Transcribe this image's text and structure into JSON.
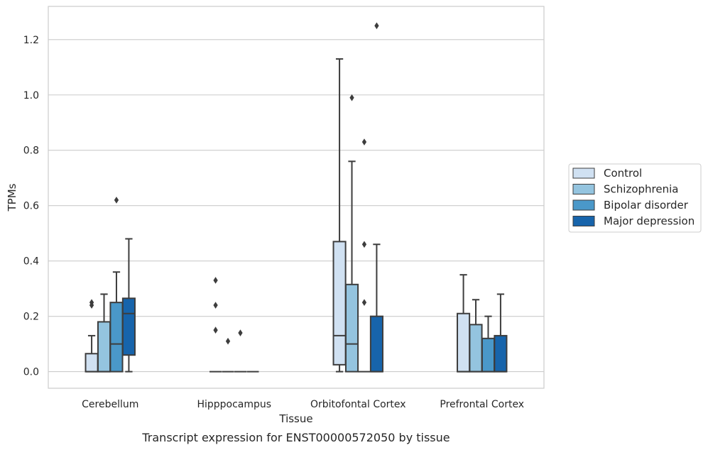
{
  "caption": "Transcript expression for ENST00000572050 by tissue",
  "chart_data": {
    "type": "boxplot",
    "xlabel": "Tissue",
    "ylabel": "TPMs",
    "ylim": [
      -0.06,
      1.32
    ],
    "yticks": [
      0.0,
      0.2,
      0.4,
      0.6,
      0.8,
      1.0,
      1.2
    ],
    "ytick_labels": [
      "0.0",
      "0.2",
      "0.4",
      "0.6",
      "0.8",
      "1.0",
      "1.2"
    ],
    "grid": "horizontal",
    "legend_position": "right",
    "categories": [
      "Cerebellum",
      "Hipppocampus",
      "Orbitofontal Cortex",
      "Prefrontal Cortex"
    ],
    "series": [
      {
        "name": "Control",
        "color": "#d0e1f2",
        "boxes": [
          {
            "whislo": 0.0,
            "q1": 0.0,
            "med": 0.0,
            "q3": 0.065,
            "whishi": 0.13,
            "fliers": [
              0.24,
              0.25
            ]
          },
          {
            "whislo": 0.0,
            "q1": 0.0,
            "med": 0.0,
            "q3": 0.0,
            "whishi": 0.0,
            "fliers": [
              0.15,
              0.24,
              0.33
            ]
          },
          {
            "whislo": 0.0,
            "q1": 0.025,
            "med": 0.13,
            "q3": 0.47,
            "whishi": 1.13,
            "fliers": []
          },
          {
            "whislo": 0.0,
            "q1": 0.0,
            "med": 0.0,
            "q3": 0.21,
            "whishi": 0.35,
            "fliers": []
          }
        ]
      },
      {
        "name": "Schizophrenia",
        "color": "#94c4df",
        "boxes": [
          {
            "whislo": 0.0,
            "q1": 0.0,
            "med": 0.0,
            "q3": 0.18,
            "whishi": 0.28,
            "fliers": []
          },
          {
            "whislo": 0.0,
            "q1": 0.0,
            "med": 0.0,
            "q3": 0.0,
            "whishi": 0.0,
            "fliers": [
              0.11
            ]
          },
          {
            "whislo": 0.0,
            "q1": 0.0,
            "med": 0.1,
            "q3": 0.315,
            "whishi": 0.76,
            "fliers": [
              0.99
            ]
          },
          {
            "whislo": 0.0,
            "q1": 0.0,
            "med": 0.0,
            "q3": 0.17,
            "whishi": 0.26,
            "fliers": []
          }
        ]
      },
      {
        "name": "Bipolar disorder",
        "color": "#4a98c9",
        "boxes": [
          {
            "whislo": 0.0,
            "q1": 0.0,
            "med": 0.1,
            "q3": 0.25,
            "whishi": 0.36,
            "fliers": [
              0.62
            ]
          },
          {
            "whislo": 0.0,
            "q1": 0.0,
            "med": 0.0,
            "q3": 0.0,
            "whishi": 0.0,
            "fliers": [
              0.14
            ]
          },
          {
            "whislo": 0.0,
            "q1": 0.0,
            "med": 0.0,
            "q3": 0.0,
            "whishi": 0.0,
            "fliers": [
              0.25,
              0.46,
              0.83
            ]
          },
          {
            "whislo": 0.0,
            "q1": 0.0,
            "med": 0.0,
            "q3": 0.12,
            "whishi": 0.2,
            "fliers": []
          }
        ]
      },
      {
        "name": "Major depression",
        "color": "#1764ab",
        "boxes": [
          {
            "whislo": 0.0,
            "q1": 0.06,
            "med": 0.21,
            "q3": 0.265,
            "whishi": 0.48,
            "fliers": []
          },
          {
            "whislo": 0.0,
            "q1": 0.0,
            "med": 0.0,
            "q3": 0.0,
            "whishi": 0.0,
            "fliers": []
          },
          {
            "whislo": 0.0,
            "q1": 0.0,
            "med": 0.0,
            "q3": 0.2,
            "whishi": 0.46,
            "fliers": [
              1.25
            ]
          },
          {
            "whislo": 0.0,
            "q1": 0.0,
            "med": 0.0,
            "q3": 0.13,
            "whishi": 0.28,
            "fliers": []
          }
        ]
      }
    ]
  }
}
